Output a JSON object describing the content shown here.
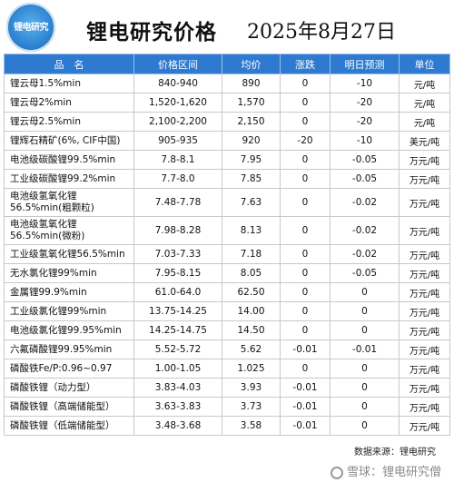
{
  "header": {
    "logo_text": "锂电研究",
    "title": "锂电研究价格",
    "date": "2025年8月27日"
  },
  "columns": [
    "品　名",
    "价格区间",
    "均价",
    "涨跌",
    "明日预测",
    "单位"
  ],
  "rows": [
    {
      "name": "锂云母1.5%min",
      "range": "840-940",
      "avg": "890",
      "change": "0",
      "forecast": "-10",
      "unit": "元/吨"
    },
    {
      "name": "锂云母2%min",
      "range": "1,520-1,620",
      "avg": "1,570",
      "change": "0",
      "forecast": "-20",
      "unit": "元/吨"
    },
    {
      "name": "锂云母2.5%min",
      "range": "2,100-2,200",
      "avg": "2,150",
      "change": "0",
      "forecast": "-20",
      "unit": "元/吨"
    },
    {
      "name": "锂辉石精矿(6%, CIF中国)",
      "range": "905-935",
      "avg": "920",
      "change": "-20",
      "forecast": "-10",
      "unit": "美元/吨"
    },
    {
      "name": "电池级碳酸锂99.5%min",
      "range": "7.8-8.1",
      "avg": "7.95",
      "change": "0",
      "forecast": "-0.05",
      "unit": "万元/吨"
    },
    {
      "name": "工业级碳酸锂99.2%min",
      "range": "7.7-8.0",
      "avg": "7.85",
      "change": "0",
      "forecast": "-0.05",
      "unit": "万元/吨"
    },
    {
      "name": "电池级氢氧化锂 56.5%min(粗颗粒)",
      "range": "7.48-7.78",
      "avg": "7.63",
      "change": "0",
      "forecast": "-0.02",
      "unit": "万元/吨"
    },
    {
      "name": "电池级氢氧化锂 56.5%min(微粉)",
      "range": "7.98-8.28",
      "avg": "8.13",
      "change": "0",
      "forecast": "-0.02",
      "unit": "万元/吨"
    },
    {
      "name": "工业级氢氧化锂56.5%min",
      "range": "7.03-7.33",
      "avg": "7.18",
      "change": "0",
      "forecast": "-0.02",
      "unit": "万元/吨"
    },
    {
      "name": "无水氯化锂99%min",
      "range": "7.95-8.15",
      "avg": "8.05",
      "change": "0",
      "forecast": "-0.05",
      "unit": "万元/吨"
    },
    {
      "name": "金属锂99.9%min",
      "range": "61.0-64.0",
      "avg": "62.50",
      "change": "0",
      "forecast": "0",
      "unit": "万元/吨"
    },
    {
      "name": "工业级氯化锂99%min",
      "range": "13.75-14.25",
      "avg": "14.00",
      "change": "0",
      "forecast": "0",
      "unit": "万元/吨"
    },
    {
      "name": "电池级氯化锂99.95%min",
      "range": "14.25-14.75",
      "avg": "14.50",
      "change": "0",
      "forecast": "0",
      "unit": "万元/吨"
    },
    {
      "name": "六氟磷酸锂99.95%min",
      "range": "5.52-5.72",
      "avg": "5.62",
      "change": "-0.01",
      "forecast": "-0.01",
      "unit": "万元/吨"
    },
    {
      "name": "磷酸铁Fe/P:0.96~0.97",
      "range": "1.00-1.05",
      "avg": "1.025",
      "change": "0",
      "forecast": "0",
      "unit": "万元/吨"
    },
    {
      "name": "磷酸铁锂（动力型）",
      "range": "3.83-4.03",
      "avg": "3.93",
      "change": "-0.01",
      "forecast": "0",
      "unit": "万元/吨"
    },
    {
      "name": "磷酸铁锂（高端储能型）",
      "range": "3.63-3.83",
      "avg": "3.73",
      "change": "-0.01",
      "forecast": "0",
      "unit": "万元/吨"
    },
    {
      "name": "磷酸铁锂（低端储能型）",
      "range": "3.48-3.68",
      "avg": "3.58",
      "change": "-0.01",
      "forecast": "0",
      "unit": "万元/吨"
    }
  ],
  "footer": {
    "source": "数据来源：锂电研究"
  },
  "watermark": {
    "text": "雪球：锂电研究僧"
  }
}
